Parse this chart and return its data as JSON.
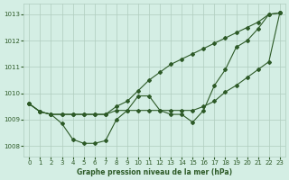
{
  "x": [
    0,
    1,
    2,
    3,
    4,
    5,
    6,
    7,
    8,
    9,
    10,
    11,
    12,
    13,
    14,
    15,
    16,
    17,
    18,
    19,
    20,
    21,
    22,
    23
  ],
  "line_upper": [
    1009.6,
    1009.3,
    1009.2,
    1009.2,
    1009.2,
    1009.2,
    1009.2,
    1009.2,
    1009.5,
    1009.7,
    1010.1,
    1010.5,
    1010.8,
    1011.1,
    1011.3,
    1011.5,
    1011.7,
    1011.9,
    1012.1,
    1012.3,
    1012.5,
    1012.7,
    1013.0,
    1013.05
  ],
  "line_wavy": [
    1009.6,
    1009.3,
    1009.2,
    1008.85,
    1008.25,
    1008.1,
    1008.1,
    1008.2,
    1009.0,
    1009.35,
    1009.9,
    1009.9,
    1009.35,
    1009.2,
    1009.2,
    1008.9,
    1009.35,
    1010.3,
    1010.9,
    1011.75,
    1012.0,
    1012.45,
    1013.0,
    1013.05
  ],
  "line_middle": [
    1009.6,
    1009.3,
    1009.2,
    1009.2,
    1009.2,
    1009.2,
    1009.2,
    1009.2,
    1009.35,
    1009.35,
    1009.35,
    1009.35,
    1009.35,
    1009.35,
    1009.35,
    1009.35,
    1009.5,
    1009.7,
    1010.05,
    1010.3,
    1010.6,
    1010.9,
    1011.2,
    1013.05
  ],
  "bg_color": "#d4eee4",
  "grid_color": "#b0ccbe",
  "line_color": "#2d5a27",
  "ylabel_ticks": [
    1008,
    1009,
    1010,
    1011,
    1012,
    1013
  ],
  "xlabel": "Graphe pression niveau de la mer (hPa)",
  "ylim": [
    1007.6,
    1013.4
  ],
  "xlim": [
    -0.5,
    23.5
  ]
}
